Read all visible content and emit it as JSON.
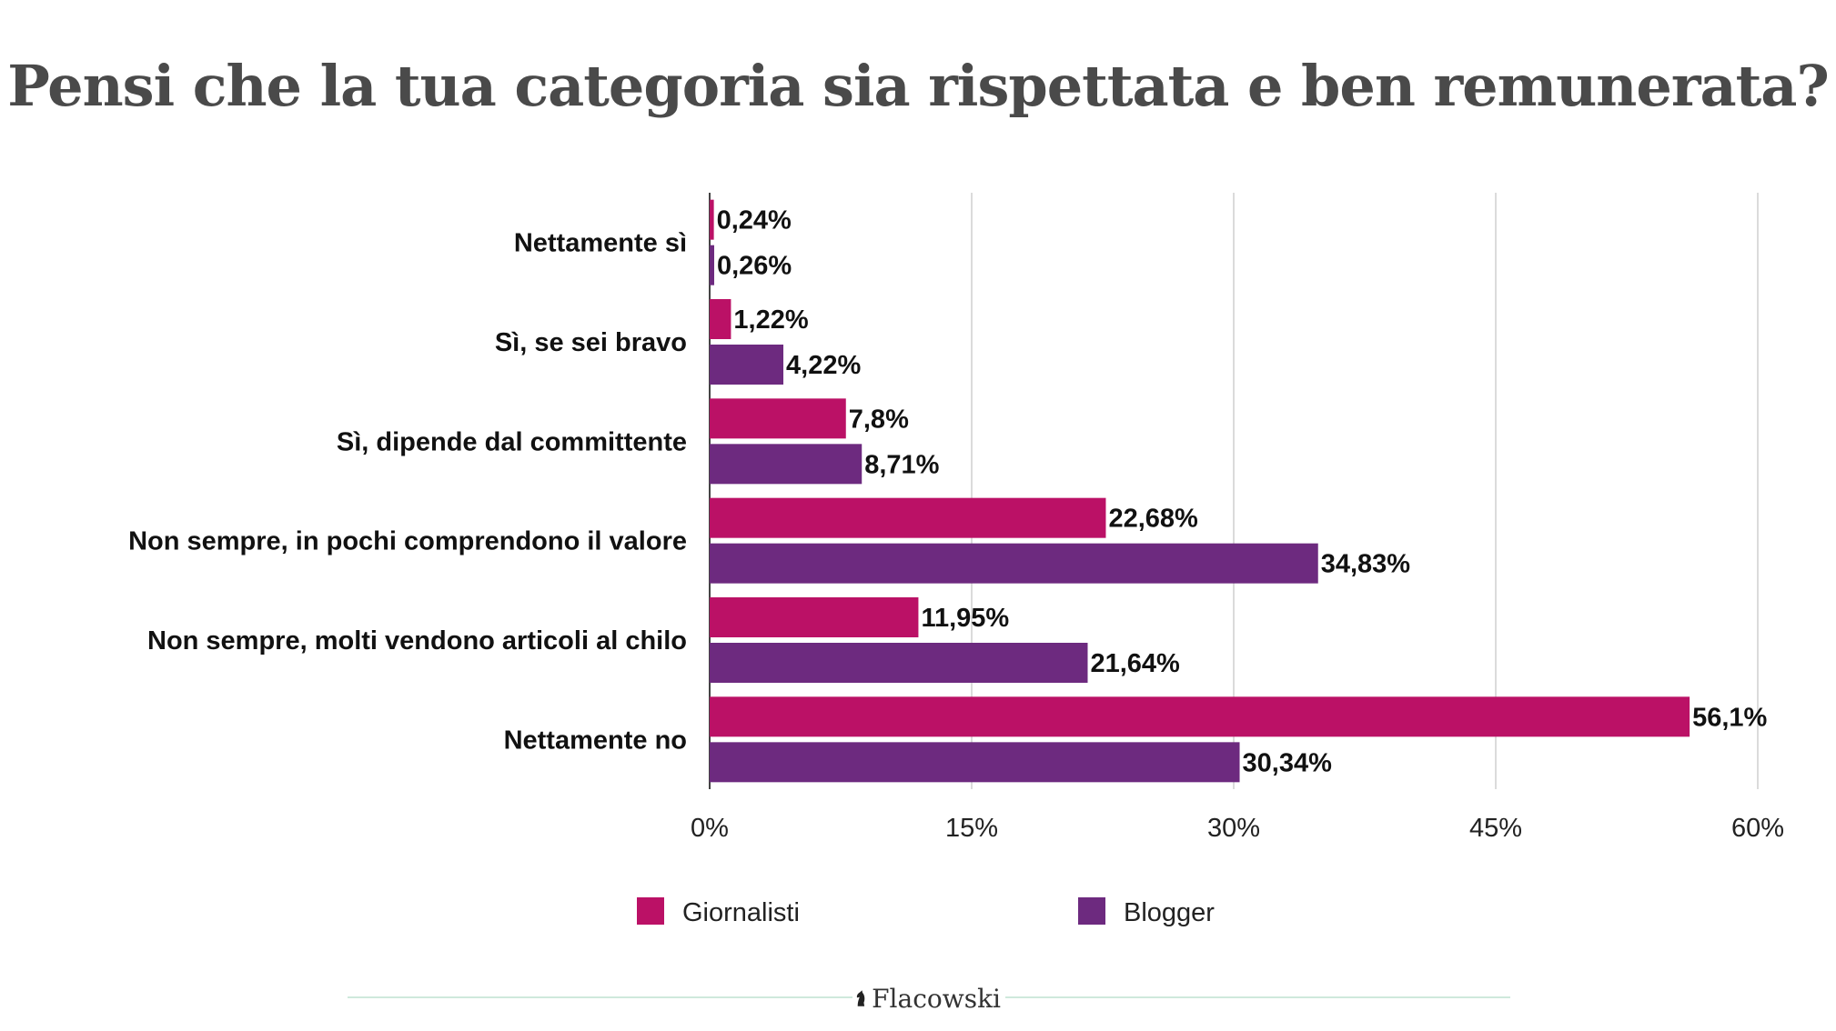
{
  "title": "Pensi che la tua categoria sia rispettata e ben remunerata?",
  "brand": {
    "name": "Flacowski",
    "logo_icon": "knight-icon"
  },
  "chart_data": {
    "type": "bar",
    "orientation": "horizontal",
    "categories": [
      "Nettamente sì",
      "Sì, se sei bravo",
      "Sì, dipende dal committente",
      "Non sempre, in pochi comprendono il valore",
      "Non sempre, molti vendono articoli al chilo",
      "Nettamente no"
    ],
    "series": [
      {
        "name": "Giornalisti",
        "color": "#bb1166",
        "values": [
          0.24,
          1.22,
          7.8,
          22.68,
          11.95,
          56.1
        ],
        "labels": [
          "0,24%",
          "1,22%",
          "7,8%",
          "22,68%",
          "11,95%",
          "56,1%"
        ]
      },
      {
        "name": "Blogger",
        "color": "#6d2a7f",
        "values": [
          0.26,
          4.22,
          8.71,
          34.83,
          21.64,
          30.34
        ],
        "labels": [
          "0,26%",
          "4,22%",
          "8,71%",
          "34,83%",
          "21,64%",
          "30,34%"
        ]
      }
    ],
    "xlim": [
      0,
      60
    ],
    "xticks": [
      0,
      15,
      30,
      45,
      60
    ],
    "xtick_labels": [
      "0%",
      "15%",
      "30%",
      "45%",
      "60%"
    ],
    "grid": true,
    "legend": "bottom"
  }
}
